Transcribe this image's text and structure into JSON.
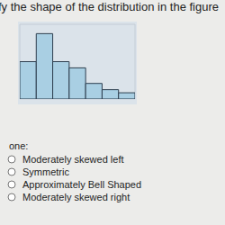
{
  "header": {
    "title": "fy the shape of the distribution in the figure"
  },
  "chart_data": {
    "type": "histogram",
    "bins": [
      0,
      1,
      2,
      3,
      4,
      5,
      6,
      7
    ],
    "counts": [
      12,
      21,
      12,
      10,
      5,
      3,
      2
    ],
    "color": "#a9cfe3",
    "xlim": [
      0,
      7
    ],
    "ylim": [
      0,
      24
    ],
    "grid": false,
    "tick_labels": false
  },
  "question": {
    "prompt": "one:",
    "options": [
      "Moderately skewed left",
      "Symmetric",
      "Approximately Bell Shaped",
      "Moderately skewed right"
    ]
  }
}
